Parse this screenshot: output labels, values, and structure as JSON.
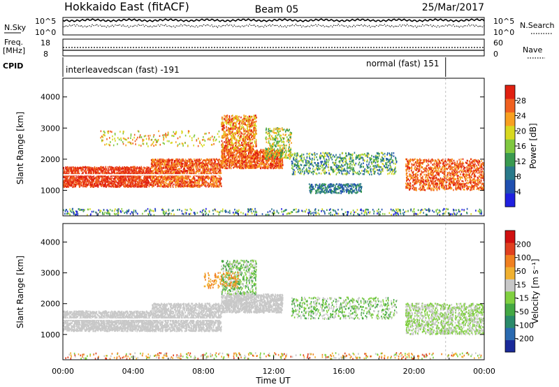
{
  "header": {
    "title": "Hokkaido East (fitACF)",
    "beam": "Beam 05",
    "date": "25/Mar/2017"
  },
  "top_panel": {
    "nsky_label": "N.Sky",
    "nsearch_label": "N.Search",
    "nsky_ticks": [
      "10^5",
      "10^0"
    ],
    "nsearch_ticks": [
      "10^5",
      "10^0"
    ],
    "freq_label": "Freq.",
    "freq_unit": "[MHz]",
    "freq_ticks": [
      "18",
      "8"
    ],
    "nave_label": "Nave",
    "nave_ticks": [
      "60",
      "0"
    ],
    "cpid_label": "CPID",
    "cpid_left": "interleavedscan (fast) -191",
    "cpid_right": "normal (fast) 151",
    "cpid_switch_hour": 21.8
  },
  "chart_data": [
    {
      "type": "heatmap",
      "name": "power",
      "ylabel": "Slant Range [km]",
      "xlim": [
        0,
        24
      ],
      "ylim": [
        180,
        4600
      ],
      "yticks": [
        1000,
        2000,
        3000,
        4000
      ],
      "ytick_labels": [
        "1000",
        "2000",
        "3000",
        "4000"
      ],
      "colorbar_label": "Power [dB]",
      "colorbar_ticks": [
        "28",
        "24",
        "20",
        "16",
        "12",
        "8",
        "4"
      ],
      "colorbar_colors": [
        "#2020e0",
        "#2050b0",
        "#2a7a8a",
        "#3a9a50",
        "#80c840",
        "#d8d820",
        "#f8a020",
        "#f06020",
        "#e02010"
      ]
    },
    {
      "type": "heatmap",
      "name": "velocity",
      "ylabel": "Slant Range [km]",
      "xlabel": "Time UT",
      "xlim": [
        0,
        24
      ],
      "ylim": [
        180,
        4600
      ],
      "xticks": [
        0,
        4,
        8,
        12,
        16,
        20,
        24
      ],
      "xtick_labels": [
        "00:00",
        "04:00",
        "08:00",
        "12:00",
        "16:00",
        "20:00",
        "00:00"
      ],
      "yticks": [
        1000,
        2000,
        3000,
        4000
      ],
      "ytick_labels": [
        "1000",
        "2000",
        "3000",
        "4000"
      ],
      "colorbar_label": "Velocity [m s⁻¹]",
      "colorbar_ticks": [
        "200",
        "100",
        "50",
        "15",
        "-15",
        "-50",
        "-100",
        "-200"
      ],
      "colorbar_colors": [
        "#1a2a9a",
        "#2a6ab0",
        "#2a8a6a",
        "#44a844",
        "#80d040",
        "#c8c8c8",
        "#f0b030",
        "#f08020",
        "#e04020",
        "#d01010"
      ]
    }
  ]
}
